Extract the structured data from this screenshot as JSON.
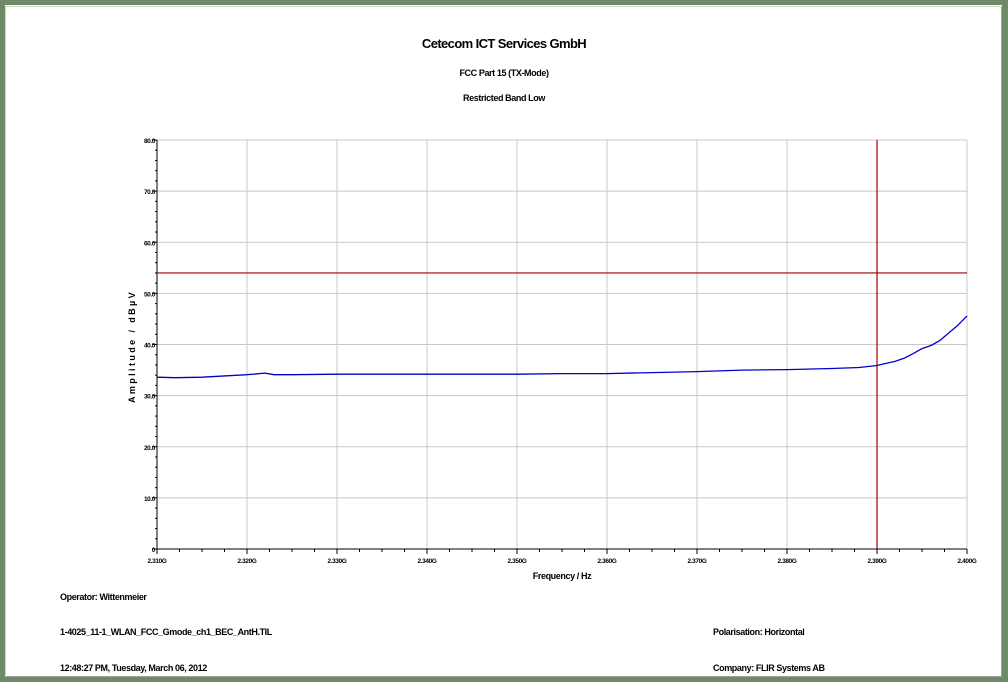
{
  "header": {
    "company": "Cetecom ICT Services GmbH",
    "subtitle": "FCC Part 15 (TX-Mode)",
    "test": "Restricted Band Low"
  },
  "footer": {
    "operator": "Operator: Wittenmeier",
    "file": "1-4025_11-1_WLAN_FCC_Gmode_ch1_BEC_AntH.TIL",
    "timestamp": "12:48:27 PM, Tuesday, March 06, 2012",
    "polarisation": "Polarisation: Horizontal",
    "company": "Company: FLIR Systems AB"
  },
  "colors": {
    "trace": "#0000cc",
    "limit_line": "#a00000",
    "marker_line": "#a00000",
    "grid": "#c8c8c8",
    "background": "#6f8a66"
  },
  "chart_data": {
    "type": "line",
    "xlabel": "Frequency / Hz",
    "ylabel": "Amplitude / dBµV",
    "x_unit": "GHz",
    "xlim": [
      2.31,
      2.4
    ],
    "ylim": [
      0,
      80
    ],
    "x_ticks": [
      2.31,
      2.32,
      2.33,
      2.34,
      2.35,
      2.36,
      2.37,
      2.38,
      2.39,
      2.4
    ],
    "x_tick_labels": [
      "2.310G",
      "2.320G",
      "2.330G",
      "2.340G",
      "2.350G",
      "2.360G",
      "2.370G",
      "2.380G",
      "2.390G",
      "2.400G"
    ],
    "y_ticks": [
      0,
      10,
      20,
      30,
      40,
      50,
      60,
      70,
      80
    ],
    "y_tick_labels": [
      "0",
      "10.0",
      "20.0",
      "30.0",
      "40.0",
      "50.0",
      "60.0",
      "70.0",
      "80.0"
    ],
    "grid": true,
    "limit_line": 54,
    "marker_x": 2.39,
    "series": [
      {
        "x": [
          2.31,
          2.312,
          2.315,
          2.318,
          2.32,
          2.322,
          2.323,
          2.325,
          2.33,
          2.335,
          2.34,
          2.345,
          2.35,
          2.355,
          2.36,
          2.365,
          2.37,
          2.375,
          2.38,
          2.385,
          2.388,
          2.39,
          2.391,
          2.392,
          2.393,
          2.394,
          2.395,
          2.396,
          2.397,
          2.398,
          2.399,
          2.4
        ],
        "values": [
          33.6,
          33.5,
          33.6,
          33.9,
          34.1,
          34.4,
          34.1,
          34.1,
          34.2,
          34.2,
          34.2,
          34.2,
          34.2,
          34.3,
          34.3,
          34.5,
          34.7,
          35.0,
          35.1,
          35.3,
          35.5,
          35.9,
          36.3,
          36.7,
          37.3,
          38.2,
          39.2,
          39.8,
          40.8,
          42.3,
          43.8,
          45.6
        ]
      }
    ]
  }
}
